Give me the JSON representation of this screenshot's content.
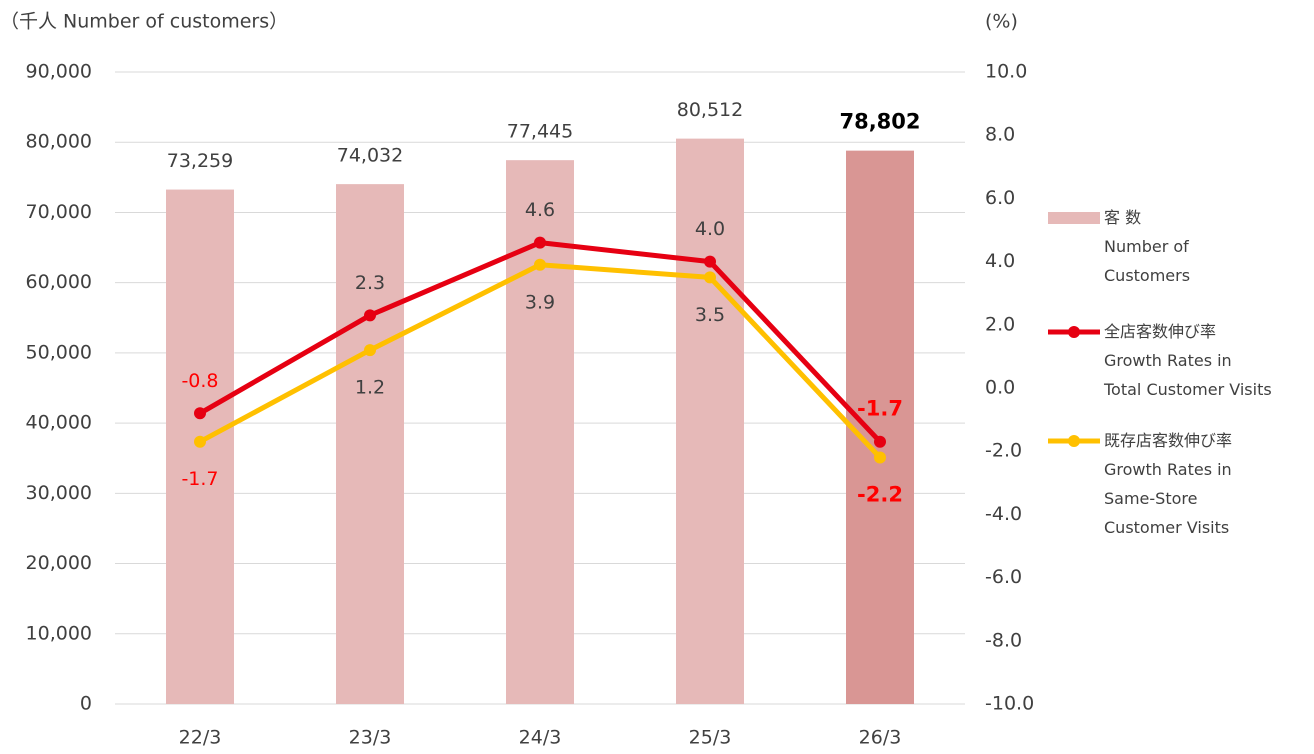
{
  "chart_data": {
    "type": "bar_line",
    "title": "（千人  Number of customers）",
    "y2_label": "(%)",
    "categories": [
      "22/3",
      "23/3",
      "24/3",
      "25/3",
      "26/3"
    ],
    "ylim": [
      0,
      90000
    ],
    "yticks": [
      0,
      {
        "value": 10000,
        "label": "10,000"
      },
      {
        "value": 20000,
        "label": "20,000"
      },
      {
        "value": 30000,
        "label": "30,000"
      },
      {
        "value": 40000,
        "label": "40,000"
      },
      {
        "value": 50000,
        "label": "50,000"
      },
      {
        "value": 60000,
        "label": "60,000"
      },
      {
        "value": 70000,
        "label": "70,000"
      },
      {
        "value": 80000,
        "label": "80,000"
      },
      {
        "value": 90000,
        "label": "90,000"
      }
    ],
    "y2lim": [
      -10,
      10
    ],
    "y2ticks": [
      {
        "value": -10,
        "label": "-10.0"
      },
      {
        "value": -8,
        "label": "-8.0"
      },
      {
        "value": -6,
        "label": "-6.0"
      },
      {
        "value": -4,
        "label": "-4.0"
      },
      {
        "value": -2,
        "label": "-2.0"
      },
      {
        "value": 0,
        "label": "0.0"
      },
      {
        "value": 2,
        "label": "2.0"
      },
      {
        "value": 4,
        "label": "4.0"
      },
      {
        "value": 6,
        "label": "6.0"
      },
      {
        "value": 8,
        "label": "8.0"
      },
      {
        "value": 10,
        "label": "10.0"
      }
    ],
    "grid": true,
    "series": [
      {
        "name": "客 数\nNumber of\nCustomers",
        "type": "bar",
        "color": "#e6b9b8",
        "colors": [
          "#e6b9b8",
          "#e6b9b8",
          "#e6b9b8",
          "#e6b9b8",
          "#d99694"
        ],
        "values": [
          73259,
          74032,
          77445,
          80512,
          78802
        ],
        "value_labels": [
          "73,259",
          "74,032",
          "77,445",
          "80,512",
          "78,802"
        ]
      },
      {
        "name": "全店客数伸び率\nGrowth Rates in\nTotal Customer Visits",
        "type": "line",
        "axis": "y2",
        "color": "#e60012",
        "values": [
          -0.8,
          2.3,
          4.6,
          4.0,
          -1.7
        ],
        "value_labels": [
          "-0.8",
          "2.3",
          "4.6",
          "4.0",
          "-1.7"
        ]
      },
      {
        "name": "既存店客数伸び率\nGrowth Rates in\nSame-Store\nCustomer Visits",
        "type": "line",
        "axis": "y2",
        "color": "#ffc000",
        "values": [
          -1.7,
          1.2,
          3.9,
          3.5,
          -2.2
        ],
        "value_labels": [
          "-1.7",
          "1.2",
          "3.9",
          "3.5",
          "-2.2"
        ]
      }
    ]
  }
}
